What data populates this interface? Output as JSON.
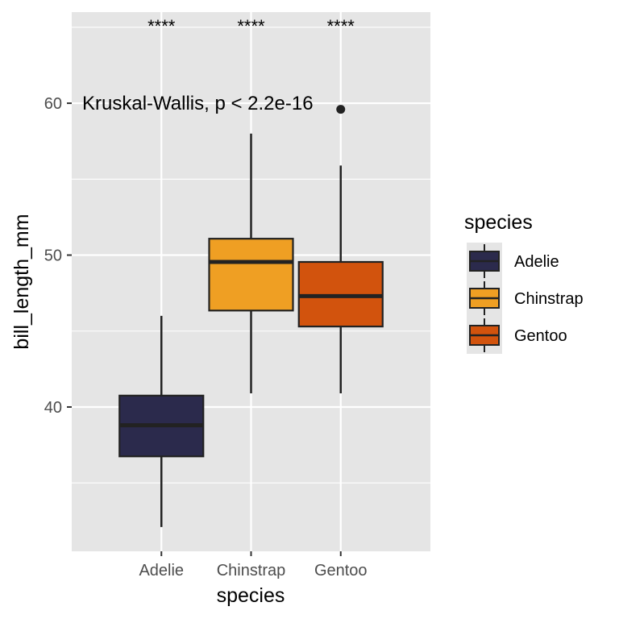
{
  "chart_data": {
    "type": "boxplot",
    "xlabel": "species",
    "ylabel": "bill_length_mm",
    "ylim": [
      30.5,
      66
    ],
    "yticks": [
      40,
      50,
      60
    ],
    "yminor": [
      35,
      45,
      55,
      65
    ],
    "grid": true,
    "categories": [
      "Adelie",
      "Chinstrap",
      "Gentoo"
    ],
    "boxes": [
      {
        "category": "Adelie",
        "min": 32.1,
        "q1": 36.75,
        "median": 38.8,
        "q3": 40.75,
        "max": 46.0,
        "outliers": []
      },
      {
        "category": "Chinstrap",
        "min": 40.9,
        "q1": 46.35,
        "median": 49.55,
        "q3": 51.08,
        "max": 58.0,
        "outliers": []
      },
      {
        "category": "Gentoo",
        "min": 40.9,
        "q1": 45.3,
        "median": 47.3,
        "q3": 49.55,
        "max": 55.9,
        "outliers": [
          59.6
        ]
      }
    ],
    "significance": [
      "****",
      "****",
      "****"
    ],
    "annotation": {
      "text": "Kruskal-Wallis, p < 2.2e-16",
      "y": 60
    },
    "legend": {
      "title": "species",
      "position": "right",
      "entries": [
        "Adelie",
        "Chinstrap",
        "Gentoo"
      ]
    },
    "colors": {
      "Adelie": "#2b2a4c",
      "Chinstrap": "#ef9f23",
      "Gentoo": "#d2530d",
      "panel_bg": "#e5e5e5",
      "grid": "#ffffff",
      "outline": "#222222"
    }
  }
}
